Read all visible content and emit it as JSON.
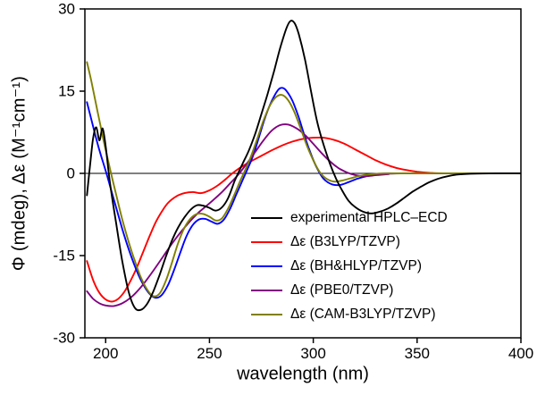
{
  "chart_data": {
    "type": "line",
    "title": "",
    "xlabel": "wavelength (nm)",
    "ylabel": "Φ (mdeg), Δε (M⁻¹cm⁻¹)",
    "xlim": [
      190,
      400
    ],
    "ylim": [
      -30,
      30
    ],
    "xticks": [
      200,
      250,
      300,
      350,
      400
    ],
    "yticks": [
      -30,
      -15,
      0,
      15,
      30
    ],
    "grid": false,
    "zero_line": true,
    "legend_position": "inside-lower-right",
    "axis_color": "#000000",
    "background": "#ffffff",
    "series": [
      {
        "id": "experimental",
        "name": "experimental HPLC–ECD",
        "color": "#000000",
        "points": [
          [
            191,
            -4
          ],
          [
            192.5,
            1.5
          ],
          [
            194,
            6.5
          ],
          [
            195.5,
            8.4
          ],
          [
            197,
            6
          ],
          [
            198.5,
            8.2
          ],
          [
            200,
            5
          ],
          [
            202,
            -1.5
          ],
          [
            205,
            -9
          ],
          [
            208,
            -16
          ],
          [
            211,
            -21.5
          ],
          [
            214,
            -24.5
          ],
          [
            217,
            -24.9
          ],
          [
            220,
            -23.8
          ],
          [
            223,
            -21.5
          ],
          [
            226,
            -18.5
          ],
          [
            229,
            -15.2
          ],
          [
            232,
            -12.2
          ],
          [
            235,
            -9.8
          ],
          [
            238,
            -8
          ],
          [
            241,
            -6.6
          ],
          [
            244,
            -5.8
          ],
          [
            247,
            -5.9
          ],
          [
            250,
            -6.3
          ],
          [
            253,
            -6.8
          ],
          [
            256,
            -6.2
          ],
          [
            259,
            -4.5
          ],
          [
            262,
            -1.5
          ],
          [
            264,
            0.2
          ],
          [
            266,
            1.8
          ],
          [
            269,
            4.2
          ],
          [
            272,
            7.2
          ],
          [
            275,
            10.8
          ],
          [
            278,
            14.5
          ],
          [
            281,
            18.5
          ],
          [
            284,
            22.8
          ],
          [
            287,
            26.4
          ],
          [
            289,
            27.8
          ],
          [
            291,
            27.4
          ],
          [
            293,
            25.4
          ],
          [
            296,
            20.8
          ],
          [
            299,
            14.8
          ],
          [
            302,
            9.2
          ],
          [
            305,
            5.2
          ],
          [
            308,
            1.8
          ],
          [
            311,
            -1
          ],
          [
            314,
            -3.2
          ],
          [
            317,
            -5
          ],
          [
            320,
            -6.1
          ],
          [
            324,
            -7
          ],
          [
            328,
            -7.3
          ],
          [
            332,
            -7
          ],
          [
            336,
            -6.4
          ],
          [
            340,
            -5.5
          ],
          [
            344,
            -4.4
          ],
          [
            348,
            -3.3
          ],
          [
            352,
            -2.4
          ],
          [
            356,
            -1.6
          ],
          [
            360,
            -1
          ],
          [
            365,
            -0.5
          ],
          [
            370,
            -0.2
          ],
          [
            378,
            -0.05
          ],
          [
            388,
            0
          ],
          [
            400,
            0
          ]
        ]
      },
      {
        "id": "b3lyp",
        "name": "Δε (B3LYP/TZVP)",
        "color": "#ff0000",
        "points": [
          [
            191,
            -16
          ],
          [
            194,
            -19.5
          ],
          [
            197,
            -21.8
          ],
          [
            200,
            -23
          ],
          [
            203,
            -23.4
          ],
          [
            206,
            -22.9
          ],
          [
            209,
            -21.6
          ],
          [
            212,
            -19.6
          ],
          [
            215,
            -17.2
          ],
          [
            218,
            -14.4
          ],
          [
            221,
            -11.6
          ],
          [
            224,
            -9
          ],
          [
            227,
            -7
          ],
          [
            230,
            -5.4
          ],
          [
            234,
            -4.2
          ],
          [
            238,
            -3.6
          ],
          [
            242,
            -3.4
          ],
          [
            246,
            -3.6
          ],
          [
            250,
            -3.1
          ],
          [
            254,
            -2.2
          ],
          [
            258,
            -1
          ],
          [
            261,
            0
          ],
          [
            265,
            1.1
          ],
          [
            270,
            2.2
          ],
          [
            275,
            3.2
          ],
          [
            280,
            4.2
          ],
          [
            285,
            5.1
          ],
          [
            290,
            5.8
          ],
          [
            295,
            6.3
          ],
          [
            300,
            6.5
          ],
          [
            305,
            6.5
          ],
          [
            310,
            6.1
          ],
          [
            315,
            5.4
          ],
          [
            320,
            4.4
          ],
          [
            325,
            3.4
          ],
          [
            330,
            2.4
          ],
          [
            335,
            1.6
          ],
          [
            340,
            1
          ],
          [
            345,
            0.6
          ],
          [
            350,
            0.3
          ],
          [
            356,
            0.1
          ],
          [
            365,
            0
          ],
          [
            400,
            0
          ]
        ]
      },
      {
        "id": "bhhlyp",
        "name": "Δε (BH&HLYP/TZVP)",
        "color": "#0000ff",
        "points": [
          [
            191,
            13
          ],
          [
            194,
            8.5
          ],
          [
            197,
            4.2
          ],
          [
            200,
            0.5
          ],
          [
            203,
            -3.5
          ],
          [
            206,
            -7.5
          ],
          [
            209,
            -11.4
          ],
          [
            212,
            -14.8
          ],
          [
            215,
            -17.8
          ],
          [
            218,
            -20.2
          ],
          [
            221,
            -21.9
          ],
          [
            224,
            -22.7
          ],
          [
            227,
            -22.2
          ],
          [
            230,
            -20.4
          ],
          [
            233,
            -17.6
          ],
          [
            236,
            -14.4
          ],
          [
            239,
            -11.4
          ],
          [
            242,
            -9.4
          ],
          [
            245,
            -8.4
          ],
          [
            248,
            -8.3
          ],
          [
            251,
            -8.8
          ],
          [
            254,
            -9.2
          ],
          [
            257,
            -8.4
          ],
          [
            260,
            -6.4
          ],
          [
            263,
            -3.8
          ],
          [
            266,
            -1.2
          ],
          [
            268,
            0.5
          ],
          [
            271,
            3.2
          ],
          [
            274,
            6.8
          ],
          [
            277,
            10.4
          ],
          [
            280,
            13.2
          ],
          [
            283,
            15.2
          ],
          [
            285,
            15.6
          ],
          [
            287,
            15.1
          ],
          [
            290,
            13.2
          ],
          [
            293,
            10.2
          ],
          [
            296,
            6.6
          ],
          [
            299,
            3.4
          ],
          [
            302,
            0.8
          ],
          [
            305,
            -1
          ],
          [
            309,
            -2
          ],
          [
            313,
            -2.1
          ],
          [
            317,
            -1.6
          ],
          [
            321,
            -1
          ],
          [
            326,
            -0.5
          ],
          [
            332,
            -0.2
          ],
          [
            340,
            0
          ],
          [
            400,
            0
          ]
        ]
      },
      {
        "id": "pbe0",
        "name": "Δε (PBE0/TZVP)",
        "color": "#800080",
        "points": [
          [
            191,
            -21.5
          ],
          [
            194,
            -22.9
          ],
          [
            197,
            -23.7
          ],
          [
            200,
            -24.1
          ],
          [
            204,
            -24.2
          ],
          [
            208,
            -23.7
          ],
          [
            212,
            -22.7
          ],
          [
            216,
            -21.2
          ],
          [
            220,
            -19.3
          ],
          [
            224,
            -17.2
          ],
          [
            228,
            -15
          ],
          [
            232,
            -12.8
          ],
          [
            236,
            -10.8
          ],
          [
            240,
            -9
          ],
          [
            244,
            -7.4
          ],
          [
            248,
            -6.1
          ],
          [
            252,
            -4.8
          ],
          [
            256,
            -3.4
          ],
          [
            260,
            -1.8
          ],
          [
            263,
            -0.6
          ],
          [
            265,
            0.3
          ],
          [
            268,
            1.8
          ],
          [
            272,
            3.9
          ],
          [
            276,
            6
          ],
          [
            280,
            7.8
          ],
          [
            284,
            8.8
          ],
          [
            288,
            8.9
          ],
          [
            292,
            8.2
          ],
          [
            296,
            7
          ],
          [
            300,
            5.4
          ],
          [
            304,
            3.7
          ],
          [
            308,
            2.2
          ],
          [
            312,
            1
          ],
          [
            316,
            0.2
          ],
          [
            320,
            -0.3
          ],
          [
            325,
            -0.5
          ],
          [
            330,
            -0.35
          ],
          [
            336,
            -0.15
          ],
          [
            342,
            0
          ],
          [
            400,
            0
          ]
        ]
      },
      {
        "id": "cam-b3lyp",
        "name": "Δε (CAM-B3LYP/TZVP)",
        "color": "#808000",
        "points": [
          [
            191,
            20.3
          ],
          [
            193,
            17
          ],
          [
            196,
            11.5
          ],
          [
            199,
            6
          ],
          [
            202,
            1
          ],
          [
            205,
            -3.8
          ],
          [
            208,
            -8.4
          ],
          [
            211,
            -12.4
          ],
          [
            214,
            -15.9
          ],
          [
            217,
            -19
          ],
          [
            220,
            -21.2
          ],
          [
            223,
            -22.4
          ],
          [
            226,
            -21.9
          ],
          [
            229,
            -19.6
          ],
          [
            232,
            -16.2
          ],
          [
            235,
            -12.6
          ],
          [
            238,
            -9.9
          ],
          [
            241,
            -8.2
          ],
          [
            244,
            -7.4
          ],
          [
            247,
            -7.4
          ],
          [
            250,
            -7.9
          ],
          [
            253,
            -8.6
          ],
          [
            256,
            -8.2
          ],
          [
            259,
            -6.4
          ],
          [
            262,
            -3.9
          ],
          [
            265,
            -1.2
          ],
          [
            267,
            0.4
          ],
          [
            270,
            3.1
          ],
          [
            273,
            6.3
          ],
          [
            276,
            9.6
          ],
          [
            279,
            12.3
          ],
          [
            282,
            13.9
          ],
          [
            285,
            14.3
          ],
          [
            288,
            13.3
          ],
          [
            291,
            11.1
          ],
          [
            294,
            8.1
          ],
          [
            297,
            5
          ],
          [
            300,
            2.4
          ],
          [
            303,
            0.3
          ],
          [
            306,
            -0.9
          ],
          [
            310,
            -1.5
          ],
          [
            314,
            -1.3
          ],
          [
            318,
            -0.9
          ],
          [
            323,
            -0.4
          ],
          [
            330,
            -0.1
          ],
          [
            340,
            0
          ],
          [
            400,
            0
          ]
        ]
      }
    ]
  }
}
